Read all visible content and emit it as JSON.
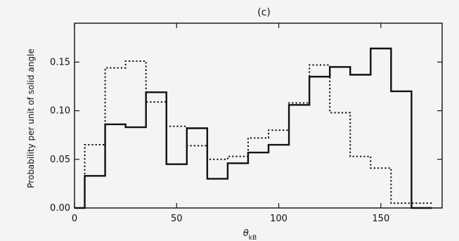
{
  "chart_data": {
    "type": "histogram",
    "panel_label": "(c)",
    "xlabel_main": "θ",
    "xlabel_sub": "kB",
    "ylabel": "Probability per unit of solid angle",
    "xlim": [
      0,
      180
    ],
    "ylim": [
      0,
      0.19
    ],
    "x_ticks": [
      0,
      50,
      100,
      150
    ],
    "y_ticks": [
      0.0,
      0.05,
      0.1,
      0.15
    ],
    "y_tick_labels": [
      "0.00",
      "0.05",
      "0.10",
      "0.15"
    ],
    "bin_edges": [
      0,
      5,
      15,
      25,
      35,
      45,
      55,
      65,
      75,
      85,
      95,
      105,
      115,
      125,
      135,
      145,
      155,
      165,
      175
    ],
    "series": [
      {
        "style": "solid",
        "values": [
          0.0,
          0.033,
          0.086,
          0.083,
          0.119,
          0.045,
          0.082,
          0.03,
          0.046,
          0.057,
          0.065,
          0.106,
          0.135,
          0.145,
          0.137,
          0.164,
          0.12,
          0.0
        ]
      },
      {
        "style": "dotted",
        "values": [
          0.0,
          0.065,
          0.144,
          0.151,
          0.109,
          0.084,
          0.064,
          0.05,
          0.053,
          0.072,
          0.08,
          0.108,
          0.147,
          0.098,
          0.053,
          0.041,
          0.005,
          0.005
        ]
      }
    ]
  }
}
